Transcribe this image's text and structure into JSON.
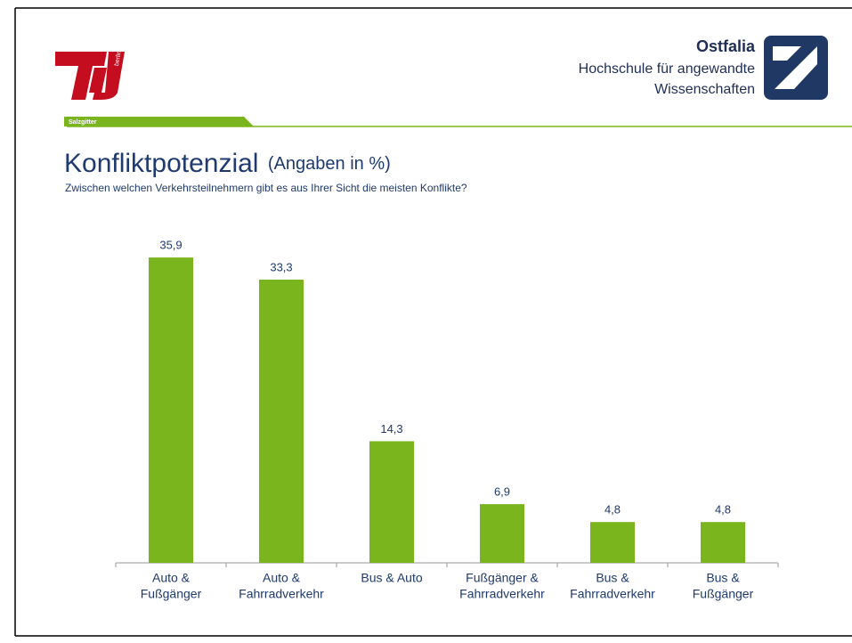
{
  "header": {
    "organization": "Ostfalia",
    "school_line1": "Hochschule für angewandte",
    "school_line2": "Wissenschaften",
    "campus": "Salzgitter",
    "logo_text": "berlin"
  },
  "chart_data": {
    "type": "bar",
    "title": "Konfliktpotenzial",
    "title_note": "(Angaben in %)",
    "subtitle": "Zwischen welchen Verkehrsteilnehmern gibt es aus Ihrer Sicht die meisten Konflikte?",
    "categories": [
      [
        "Auto &",
        "Fußgänger"
      ],
      [
        "Auto &",
        "Fahrradverkehr"
      ],
      [
        "Bus & Auto"
      ],
      [
        "Fußgänger &",
        "Fahrradverkehr"
      ],
      [
        "Bus &",
        "Fahrradverkehr"
      ],
      [
        "Bus &",
        "Fußgänger"
      ]
    ],
    "values": [
      35.9,
      33.3,
      14.3,
      6.9,
      4.8,
      4.8
    ],
    "value_labels": [
      "35,9",
      "33,3",
      "14,3",
      "6,9",
      "4,8",
      "4,8"
    ],
    "color": "#7ab51d",
    "ylim": [
      0,
      40
    ]
  }
}
